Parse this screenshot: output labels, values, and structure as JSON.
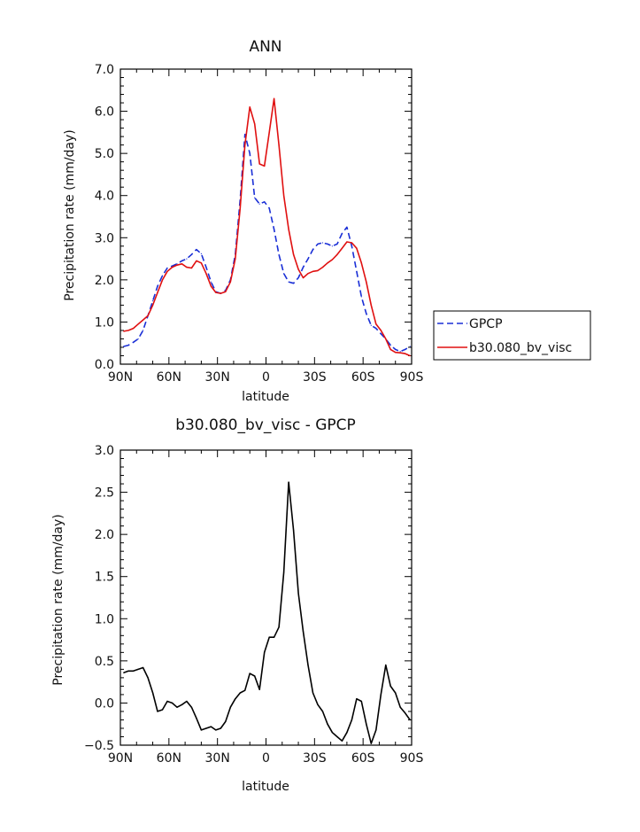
{
  "chart_data": [
    {
      "type": "line",
      "title": "ANN",
      "xlabel": "latitude",
      "ylabel": "Precipitation rate (mm/day)",
      "xlim": [
        90,
        -90
      ],
      "ylim": [
        0,
        7
      ],
      "xticks": [
        90,
        60,
        30,
        0,
        -30,
        -60,
        -90
      ],
      "xtick_labels": [
        "90N",
        "60N",
        "30N",
        "0",
        "30S",
        "60S",
        "90S"
      ],
      "yticks": [
        0,
        1,
        2,
        3,
        4,
        5,
        6,
        7
      ],
      "ytick_labels": [
        "0.0",
        "1.0",
        "2.0",
        "3.0",
        "4.0",
        "5.0",
        "6.0",
        "7.0"
      ],
      "legend_position": "right",
      "series": [
        {
          "name": "GPCP",
          "color": "#1a2fd6",
          "style": "dashed",
          "x": [
            88,
            85,
            82,
            79,
            76,
            73,
            70,
            67,
            64,
            61,
            58,
            55,
            52,
            49,
            46,
            43,
            40,
            37,
            34,
            31,
            28,
            25,
            22,
            19,
            16,
            13,
            10,
            7,
            4,
            1,
            -2,
            -5,
            -8,
            -11,
            -14,
            -17,
            -20,
            -23,
            -26,
            -29,
            -32,
            -35,
            -38,
            -41,
            -44,
            -47,
            -50,
            -53,
            -56,
            -59,
            -62,
            -65,
            -68,
            -71,
            -74,
            -77,
            -80,
            -83,
            -86,
            -89
          ],
          "y": [
            0.42,
            0.45,
            0.52,
            0.6,
            0.8,
            1.15,
            1.5,
            1.85,
            2.1,
            2.28,
            2.33,
            2.38,
            2.45,
            2.5,
            2.6,
            2.72,
            2.62,
            2.3,
            1.95,
            1.72,
            1.68,
            1.75,
            2.0,
            2.6,
            3.9,
            5.45,
            5.0,
            3.95,
            3.8,
            3.85,
            3.7,
            3.2,
            2.6,
            2.15,
            1.95,
            1.92,
            2.05,
            2.3,
            2.5,
            2.72,
            2.85,
            2.88,
            2.85,
            2.8,
            2.85,
            3.1,
            3.25,
            2.8,
            2.2,
            1.6,
            1.2,
            0.92,
            0.85,
            0.72,
            0.6,
            0.45,
            0.35,
            0.3,
            0.35,
            0.42
          ]
        },
        {
          "name": "b30.080_bv_visc",
          "color": "#e01010",
          "style": "solid",
          "x": [
            88,
            85,
            82,
            79,
            76,
            73,
            70,
            67,
            64,
            61,
            58,
            55,
            52,
            49,
            46,
            43,
            40,
            37,
            34,
            31,
            28,
            25,
            22,
            19,
            16,
            13,
            10,
            7,
            4,
            1,
            -2,
            -5,
            -8,
            -11,
            -14,
            -17,
            -20,
            -23,
            -26,
            -29,
            -32,
            -35,
            -38,
            -41,
            -44,
            -47,
            -50,
            -53,
            -56,
            -59,
            -62,
            -65,
            -68,
            -71,
            -74,
            -77,
            -80,
            -83,
            -86,
            -89
          ],
          "y": [
            0.78,
            0.8,
            0.85,
            0.95,
            1.05,
            1.15,
            1.4,
            1.7,
            2.0,
            2.2,
            2.3,
            2.35,
            2.38,
            2.3,
            2.28,
            2.45,
            2.4,
            2.15,
            1.85,
            1.7,
            1.68,
            1.72,
            1.95,
            2.5,
            3.7,
            5.2,
            6.1,
            5.7,
            4.75,
            4.7,
            5.5,
            6.3,
            5.2,
            4.0,
            3.2,
            2.6,
            2.25,
            2.05,
            2.15,
            2.2,
            2.22,
            2.3,
            2.4,
            2.48,
            2.6,
            2.75,
            2.9,
            2.88,
            2.75,
            2.4,
            1.95,
            1.4,
            0.95,
            0.8,
            0.6,
            0.35,
            0.28,
            0.27,
            0.25,
            0.2
          ]
        }
      ]
    },
    {
      "type": "line",
      "title": "b30.080_bv_visc - GPCP",
      "xlabel": "latitude",
      "ylabel": "Precipitation rate (mm/day)",
      "xlim": [
        90,
        -90
      ],
      "ylim": [
        -0.5,
        3.0
      ],
      "xticks": [
        90,
        60,
        30,
        0,
        -30,
        -60,
        -90
      ],
      "xtick_labels": [
        "90N",
        "60N",
        "30N",
        "0",
        "30S",
        "60S",
        "90S"
      ],
      "yticks": [
        -0.5,
        0,
        0.5,
        1.0,
        1.5,
        2.0,
        2.5,
        3.0
      ],
      "ytick_labels": [
        "−0.5",
        "0.0",
        "0.5",
        "1.0",
        "1.5",
        "2.0",
        "2.5",
        "3.0"
      ],
      "series": [
        {
          "color": "#000000",
          "style": "solid",
          "x": [
            88,
            85,
            82,
            79,
            76,
            73,
            70,
            67,
            64,
            61,
            58,
            55,
            52,
            49,
            46,
            43,
            40,
            37,
            34,
            31,
            28,
            25,
            22,
            19,
            16,
            13,
            10,
            7,
            4,
            1,
            -2,
            -5,
            -8,
            -11,
            -14,
            -17,
            -20,
            -23,
            -26,
            -29,
            -32,
            -35,
            -38,
            -41,
            -44,
            -47,
            -50,
            -53,
            -56,
            -59,
            -62,
            -65,
            -68,
            -71,
            -74,
            -77,
            -80,
            -83,
            -86,
            -89
          ],
          "y": [
            0.36,
            0.38,
            0.38,
            0.4,
            0.42,
            0.3,
            0.12,
            -0.1,
            -0.08,
            0.02,
            0.0,
            -0.05,
            -0.02,
            0.02,
            -0.05,
            -0.18,
            -0.32,
            -0.3,
            -0.28,
            -0.32,
            -0.3,
            -0.22,
            -0.05,
            0.05,
            0.12,
            0.15,
            0.35,
            0.32,
            0.16,
            0.6,
            0.78,
            0.78,
            0.9,
            1.55,
            2.62,
            2.05,
            1.3,
            0.85,
            0.45,
            0.12,
            -0.02,
            -0.1,
            -0.25,
            -0.35,
            -0.4,
            -0.45,
            -0.35,
            -0.2,
            0.05,
            0.02,
            -0.25,
            -0.48,
            -0.32,
            0.1,
            0.45,
            0.2,
            0.12,
            -0.05,
            -0.12,
            -0.2
          ]
        }
      ]
    }
  ]
}
